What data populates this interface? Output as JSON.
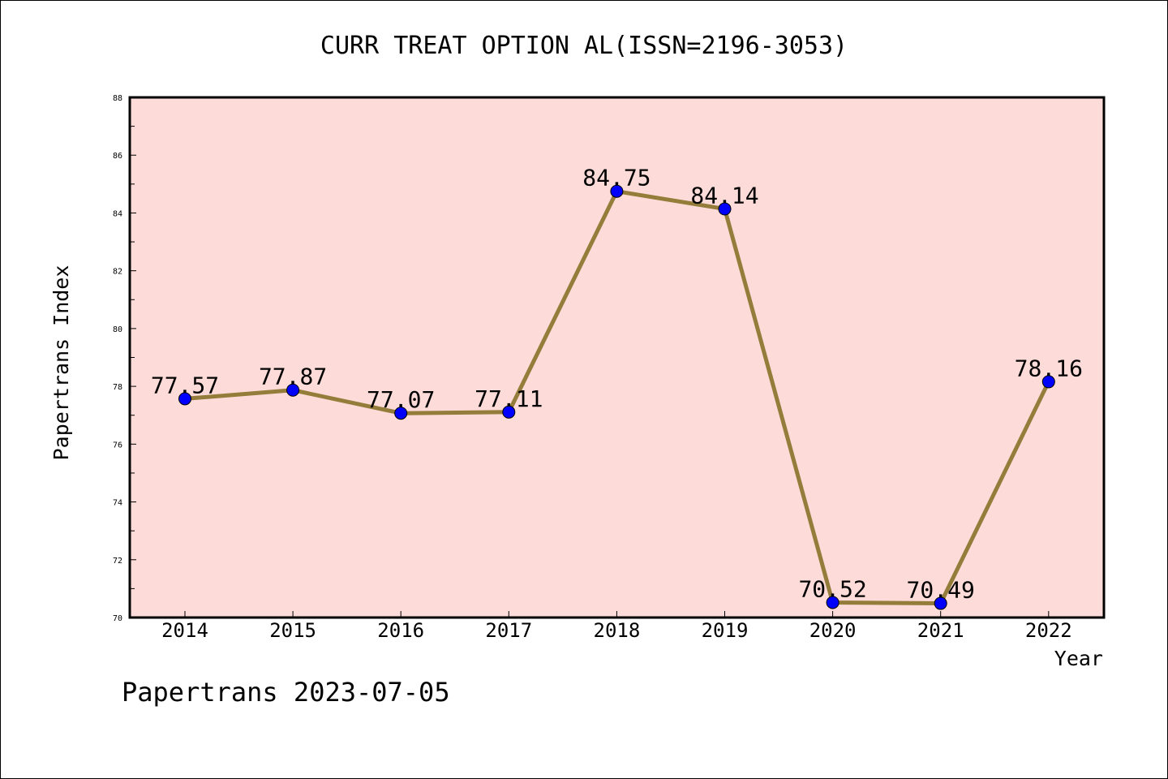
{
  "chart_data": {
    "type": "line",
    "title": "CURR TREAT OPTION AL(ISSN=2196-3053)",
    "xlabel": "Year",
    "ylabel": "Papertrans Index",
    "categories": [
      "2014",
      "2015",
      "2016",
      "2017",
      "2018",
      "2019",
      "2020",
      "2021",
      "2022"
    ],
    "series": [
      {
        "values": [
          77.57,
          77.87,
          77.07,
          77.11,
          84.75,
          84.14,
          70.52,
          70.49,
          78.16
        ]
      }
    ],
    "data_labels": [
      "77.57",
      "77.87",
      "77.07",
      "77.11",
      "84.75",
      "84.14",
      "70.52",
      "70.49",
      "78.16"
    ],
    "ylim": [
      70,
      88
    ],
    "yticks": [
      "70",
      "72",
      "74",
      "76",
      "78",
      "80",
      "82",
      "84",
      "86",
      "88"
    ],
    "grid": false,
    "plot_background": "#fddbd8",
    "line_color": "#947c3a",
    "marker_color": "#0000ff"
  },
  "footer": "Papertrans 2023-07-05"
}
